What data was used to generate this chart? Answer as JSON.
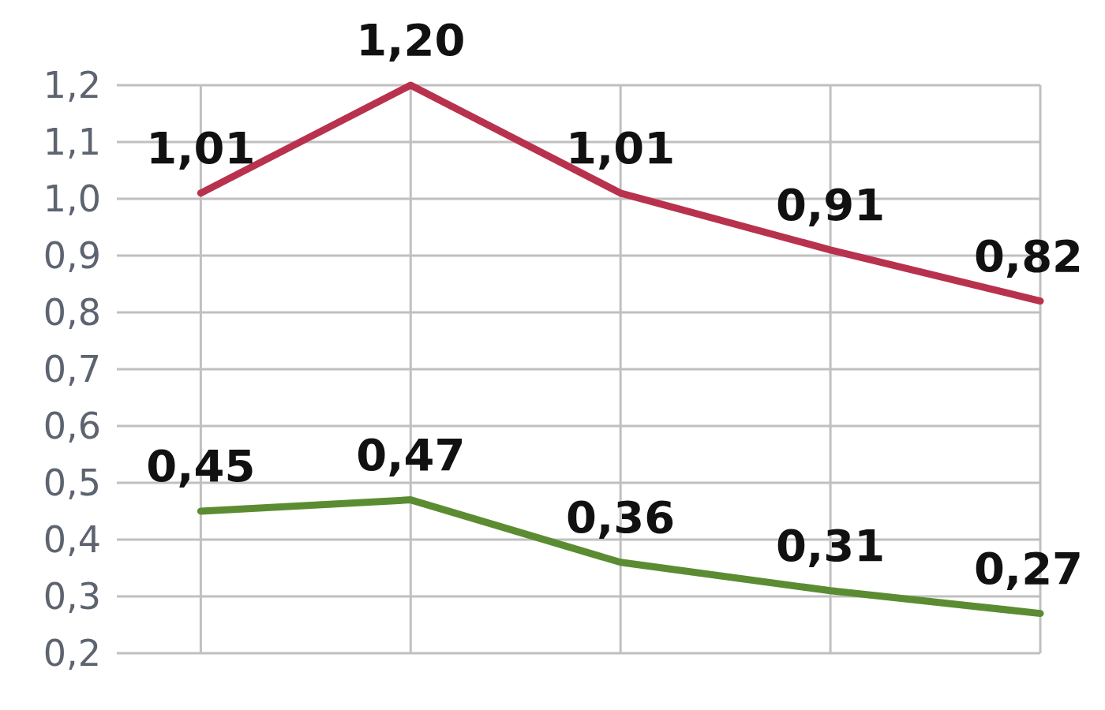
{
  "chart_data": {
    "type": "line",
    "categories": [
      null,
      null,
      null,
      null,
      null
    ],
    "series": [
      {
        "color": "#b8324e",
        "values": [
          1.01,
          1.2,
          1.01,
          0.91,
          0.82
        ],
        "value_labels": [
          "1,01",
          "1,20",
          "1,01",
          "0,91",
          "0,82"
        ]
      },
      {
        "color": "#5b8c32",
        "values": [
          0.45,
          0.47,
          0.36,
          0.31,
          0.27
        ],
        "value_labels": [
          "0,45",
          "0,47",
          "0,36",
          "0,31",
          "0,27"
        ]
      }
    ],
    "ylim": [
      0.2,
      1.2
    ],
    "yticks": [
      {
        "value": 0.2,
        "label": "0,2"
      },
      {
        "value": 0.3,
        "label": "0,3"
      },
      {
        "value": 0.4,
        "label": "0,4"
      },
      {
        "value": 0.5,
        "label": "0,5"
      },
      {
        "value": 0.6,
        "label": "0,6"
      },
      {
        "value": 0.7,
        "label": "0,7"
      },
      {
        "value": 0.8,
        "label": "0,8"
      },
      {
        "value": 0.9,
        "label": "0,9"
      },
      {
        "value": 1.0,
        "label": "1,0"
      },
      {
        "value": 1.1,
        "label": "1,1"
      },
      {
        "value": 1.2,
        "label": "1,2"
      }
    ],
    "grid": true,
    "marker": "none",
    "line_style": "solid"
  }
}
